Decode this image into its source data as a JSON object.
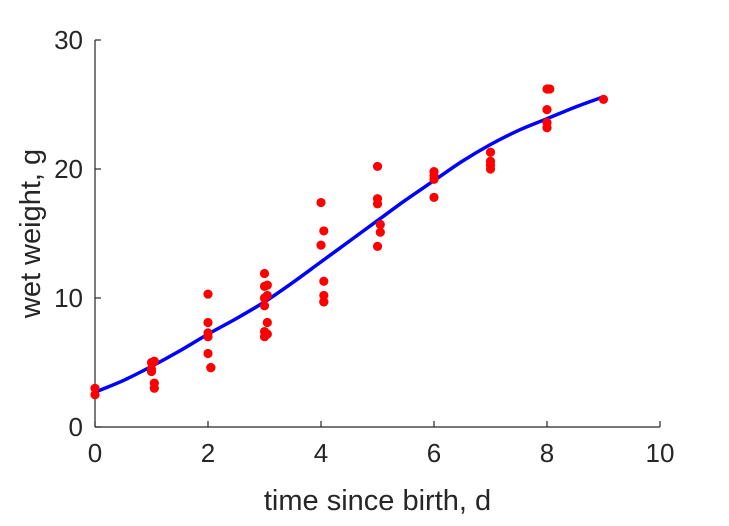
{
  "chart_data": {
    "type": "scatter",
    "title": "",
    "xlabel": "time since birth, d",
    "ylabel": "wet weight, g",
    "xlim": [
      0,
      10
    ],
    "ylim": [
      0,
      30
    ],
    "xticks": [
      0,
      2,
      4,
      6,
      8,
      10
    ],
    "xtick_labels": [
      "0",
      "2",
      "4",
      "6",
      "8",
      "10"
    ],
    "yticks": [
      0,
      10,
      20,
      30
    ],
    "ytick_labels": [
      "0",
      "10",
      "20",
      "30"
    ],
    "grid": false,
    "legend": "none",
    "series": [
      {
        "kind": "points",
        "color": "#ff0000",
        "x": [
          0,
          0,
          1,
          1,
          1,
          1.05,
          1.05,
          1.05,
          2,
          2,
          2,
          2,
          2,
          2.05,
          2.05,
          3,
          3,
          3,
          3,
          3,
          3,
          3.05,
          3.05,
          3.05,
          3.05,
          4,
          4,
          4.05,
          4.05,
          4.05,
          4.05,
          4.05,
          5,
          5,
          5,
          5,
          5.05,
          5.05,
          6,
          6,
          6,
          6,
          7,
          7,
          7,
          7,
          8,
          8,
          8,
          8,
          8.05,
          9
        ],
        "y": [
          3.0,
          2.5,
          4.3,
          4.5,
          5.0,
          3.4,
          3.0,
          5.1,
          10.3,
          8.1,
          7.3,
          7.0,
          5.7,
          4.6,
          4.6,
          11.9,
          10.9,
          10.0,
          9.4,
          7.4,
          7.0,
          11.0,
          10.2,
          8.1,
          7.2,
          17.4,
          14.1,
          15.2,
          11.3,
          10.2,
          9.7,
          9.7,
          20.2,
          17.7,
          17.3,
          14.0,
          15.1,
          15.7,
          19.8,
          19.5,
          19.2,
          17.8,
          21.3,
          20.6,
          20.3,
          20.0,
          26.2,
          24.6,
          23.6,
          23.2,
          26.2,
          25.4
        ]
      },
      {
        "kind": "curve",
        "color": "#0000ff",
        "x": [
          0,
          0.5,
          1,
          1.5,
          2,
          2.5,
          3,
          3.5,
          4,
          4.5,
          5,
          5.5,
          6,
          6.5,
          7,
          7.5,
          8,
          8.5,
          9
        ],
        "y": [
          2.7,
          3.6,
          4.7,
          5.9,
          7.2,
          8.4,
          9.7,
          11.2,
          12.8,
          14.4,
          16.0,
          17.6,
          19.1,
          20.6,
          21.9,
          23.0,
          23.9,
          24.8,
          25.6
        ]
      }
    ]
  }
}
